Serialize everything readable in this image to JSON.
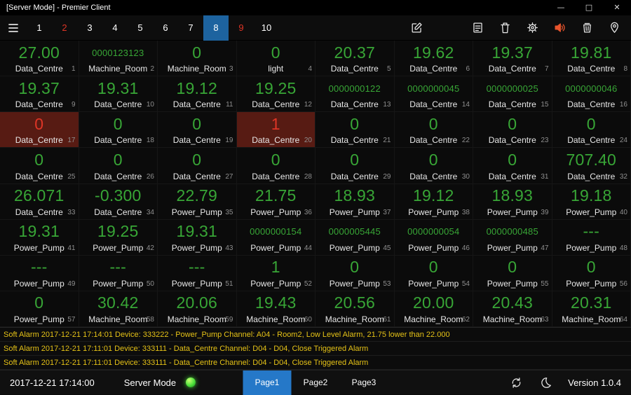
{
  "window": {
    "title": "[Server Mode] - Premier Client",
    "controls": {
      "minimize": "—",
      "maximize": "□",
      "close": "✕"
    }
  },
  "colors": {
    "green": "#38a636",
    "red": "#de3526",
    "alarm_bg": "#571b13",
    "yellow": "#e5c217",
    "blue": "#1d639f",
    "page_blue": "#2578c8",
    "status_green": "#4adf3a",
    "speaker_orange": "#e8542c"
  },
  "toolbar": {
    "tabs": [
      {
        "label": "1"
      },
      {
        "label": "2",
        "alert": true
      },
      {
        "label": "3"
      },
      {
        "label": "4"
      },
      {
        "label": "5"
      },
      {
        "label": "6"
      },
      {
        "label": "7"
      },
      {
        "label": "8",
        "selected": true
      },
      {
        "label": "9",
        "alert": true
      },
      {
        "label": "10"
      }
    ],
    "icons": [
      "menu-icon",
      "edit-icon",
      "alarm-log-icon",
      "trash-icon",
      "settings-gear-icon",
      "sound-alert-icon",
      "clear-alarms-icon",
      "location-pin-icon"
    ]
  },
  "grid": {
    "cells": [
      {
        "value": "27.00",
        "label": "Data_Centre",
        "index": 1
      },
      {
        "value": "0000123123",
        "label": "Machine_Room",
        "index": 2
      },
      {
        "value": "0",
        "label": "Machine_Room",
        "index": 3
      },
      {
        "value": "0",
        "label": "light",
        "index": 4
      },
      {
        "value": "20.37",
        "label": "Data_Centre",
        "index": 5
      },
      {
        "value": "19.62",
        "label": "Data_Centre",
        "index": 6
      },
      {
        "value": "19.37",
        "label": "Data_Centre",
        "index": 7
      },
      {
        "value": "19.81",
        "label": "Data_Centre",
        "index": 8
      },
      {
        "value": "19.37",
        "label": "Data_Centre",
        "index": 9
      },
      {
        "value": "19.31",
        "label": "Data_Centre",
        "index": 10
      },
      {
        "value": "19.12",
        "label": "Data_Centre",
        "index": 11
      },
      {
        "value": "19.25",
        "label": "Data_Centre",
        "index": 12
      },
      {
        "value": "0000000122",
        "label": "Data_Centre",
        "index": 13
      },
      {
        "value": "0000000045",
        "label": "Data_Centre",
        "index": 14
      },
      {
        "value": "0000000025",
        "label": "Data_Centre",
        "index": 15
      },
      {
        "value": "0000000046",
        "label": "Data_Centre",
        "index": 16
      },
      {
        "value": "0",
        "label": "Data_Centre",
        "index": 17,
        "state": "alarm"
      },
      {
        "value": "0",
        "label": "Data_Centre",
        "index": 18
      },
      {
        "value": "0",
        "label": "Data_Centre",
        "index": 19
      },
      {
        "value": "1",
        "label": "Data_Centre",
        "index": 20,
        "state": "alarm"
      },
      {
        "value": "0",
        "label": "Data_Centre",
        "index": 21
      },
      {
        "value": "0",
        "label": "Data_Centre",
        "index": 22
      },
      {
        "value": "0",
        "label": "Data_Centre",
        "index": 23
      },
      {
        "value": "0",
        "label": "Data_Centre",
        "index": 24
      },
      {
        "value": "0",
        "label": "Data_Centre",
        "index": 25
      },
      {
        "value": "0",
        "label": "Data_Centre",
        "index": 26
      },
      {
        "value": "0",
        "label": "Data_Centre",
        "index": 27
      },
      {
        "value": "0",
        "label": "Data_Centre",
        "index": 28
      },
      {
        "value": "0",
        "label": "Data_Centre",
        "index": 29
      },
      {
        "value": "0",
        "label": "Data_Centre",
        "index": 30
      },
      {
        "value": "0",
        "label": "Data_Centre",
        "index": 31
      },
      {
        "value": "707.40",
        "label": "Data_Centre",
        "index": 32
      },
      {
        "value": "26.071",
        "label": "Data_Centre",
        "index": 33
      },
      {
        "value": "-0.300",
        "label": "Data_Centre",
        "index": 34
      },
      {
        "value": "22.79",
        "label": "Power_Pump",
        "index": 35
      },
      {
        "value": "21.75",
        "label": "Power_Pump",
        "index": 36
      },
      {
        "value": "18.93",
        "label": "Power_Pump",
        "index": 37
      },
      {
        "value": "19.12",
        "label": "Power_Pump",
        "index": 38
      },
      {
        "value": "18.93",
        "label": "Power_Pump",
        "index": 39
      },
      {
        "value": "19.18",
        "label": "Power_Pump",
        "index": 40
      },
      {
        "value": "19.31",
        "label": "Power_Pump",
        "index": 41
      },
      {
        "value": "19.25",
        "label": "Power_Pump",
        "index": 42
      },
      {
        "value": "19.31",
        "label": "Power_Pump",
        "index": 43
      },
      {
        "value": "0000000154",
        "label": "Power_Pump",
        "index": 44
      },
      {
        "value": "0000005445",
        "label": "Power_Pump",
        "index": 45
      },
      {
        "value": "0000000054",
        "label": "Power_Pump",
        "index": 46
      },
      {
        "value": "0000000485",
        "label": "Power_Pump",
        "index": 47
      },
      {
        "value": "---",
        "label": "Power_Pump",
        "index": 48
      },
      {
        "value": "---",
        "label": "Power_Pump",
        "index": 49
      },
      {
        "value": "---",
        "label": "Power_Pump",
        "index": 50
      },
      {
        "value": "---",
        "label": "Power_Pump",
        "index": 51
      },
      {
        "value": "1",
        "label": "Power_Pump",
        "index": 52
      },
      {
        "value": "0",
        "label": "Power_Pump",
        "index": 53
      },
      {
        "value": "0",
        "label": "Power_Pump",
        "index": 54
      },
      {
        "value": "0",
        "label": "Power_Pump",
        "index": 55
      },
      {
        "value": "0",
        "label": "Power_Pump",
        "index": 56
      },
      {
        "value": "0",
        "label": "Power_Pump",
        "index": 57
      },
      {
        "value": "30.42",
        "label": "Machine_Room",
        "index": 58
      },
      {
        "value": "20.06",
        "label": "Machine_Room",
        "index": 59
      },
      {
        "value": "19.43",
        "label": "Machine_Room",
        "index": 60
      },
      {
        "value": "20.56",
        "label": "Machine_Room",
        "index": 61
      },
      {
        "value": "20.00",
        "label": "Machine_Room",
        "index": 62
      },
      {
        "value": "20.43",
        "label": "Machine_Room",
        "index": 63
      },
      {
        "value": "20.31",
        "label": "Machine_Room",
        "index": 64
      }
    ]
  },
  "alarms": [
    {
      "message": "Soft Alarm 2017-12-21 17:14:01 Device: 333222 - Power_Pump Channel: A04 - Room2, Low Level Alarm, 21.75 lower than 22.000"
    },
    {
      "message": "Soft Alarm 2017-12-21 17:11:01 Device: 333111 - Data_Centre Channel: D04 - D04, Close Triggered Alarm"
    },
    {
      "message": "Soft Alarm 2017-12-21 17:11:01 Device: 333111 - Data_Centre Channel: D04 - D04, Close Triggered Alarm"
    }
  ],
  "statusbar": {
    "datetime": "2017-12-21 17:14:00",
    "mode": "Server Mode",
    "pages": [
      {
        "label": "Page1",
        "selected": true
      },
      {
        "label": "Page2"
      },
      {
        "label": "Page3"
      }
    ],
    "icons": [
      "sync-icon",
      "night-mode-icon"
    ],
    "version": "Version 1.0.4"
  }
}
